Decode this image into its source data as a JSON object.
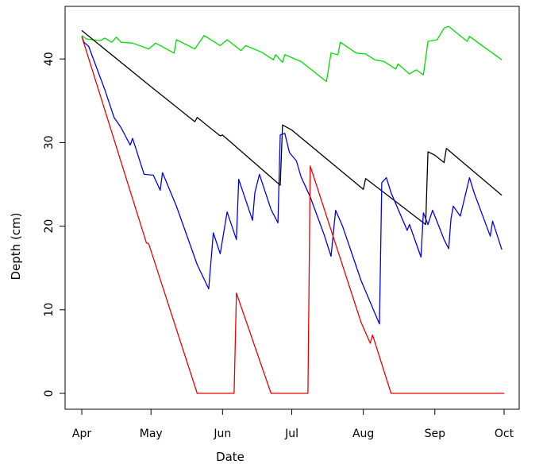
{
  "chart_data": {
    "type": "line",
    "title": "",
    "xlabel": "Date",
    "ylabel": "Depth (cm)",
    "x_ticks": [
      "Apr",
      "May",
      "Jun",
      "Jul",
      "Aug",
      "Sep",
      "Oct"
    ],
    "x_tick_dates": [
      "04-01",
      "05-01",
      "06-01",
      "07-01",
      "08-01",
      "09-01",
      "10-01"
    ],
    "y_ticks": [
      0,
      10,
      20,
      30,
      40
    ],
    "xlim": [
      "04-01",
      "10-01"
    ],
    "ylim": [
      0,
      43.9
    ],
    "grid": false,
    "series": [
      {
        "color": "#00dd00",
        "points": [
          [
            "04-01",
            42.8
          ],
          [
            "04-03",
            42.4
          ],
          [
            "04-09",
            42.2
          ],
          [
            "04-11",
            42.5
          ],
          [
            "04-14",
            42.0
          ],
          [
            "04-16",
            42.6
          ],
          [
            "04-18",
            42.0
          ],
          [
            "04-23",
            41.9
          ],
          [
            "04-30",
            41.2
          ],
          [
            "05-03",
            41.9
          ],
          [
            "05-11",
            40.7
          ],
          [
            "05-12",
            42.3
          ],
          [
            "05-20",
            41.2
          ],
          [
            "05-24",
            42.8
          ],
          [
            "05-31",
            41.6
          ],
          [
            "06-03",
            42.3
          ],
          [
            "06-09",
            41.0
          ],
          [
            "06-11",
            41.6
          ],
          [
            "06-18",
            40.8
          ],
          [
            "06-23",
            39.9
          ],
          [
            "06-24",
            40.5
          ],
          [
            "06-27",
            39.6
          ],
          [
            "06-28",
            40.5
          ],
          [
            "07-05",
            39.7
          ],
          [
            "07-16",
            37.3
          ],
          [
            "07-18",
            40.7
          ],
          [
            "07-21",
            40.5
          ],
          [
            "07-22",
            42.0
          ],
          [
            "07-29",
            40.7
          ],
          [
            "08-02",
            40.6
          ],
          [
            "08-06",
            39.9
          ],
          [
            "08-10",
            39.7
          ],
          [
            "08-15",
            38.8
          ],
          [
            "08-16",
            39.4
          ],
          [
            "08-21",
            38.2
          ],
          [
            "08-24",
            38.7
          ],
          [
            "08-27",
            38.1
          ],
          [
            "08-29",
            42.1
          ],
          [
            "09-02",
            42.3
          ],
          [
            "09-05",
            43.7
          ],
          [
            "09-07",
            43.9
          ],
          [
            "09-15",
            42.1
          ],
          [
            "09-16",
            42.7
          ],
          [
            "09-30",
            39.9
          ]
        ]
      },
      {
        "color": "#000000",
        "points": [
          [
            "04-01",
            43.4
          ],
          [
            "04-30",
            36.9
          ],
          [
            "05-20",
            32.5
          ],
          [
            "05-21",
            33.0
          ],
          [
            "05-31",
            30.8
          ],
          [
            "06-01",
            30.9
          ],
          [
            "06-26",
            24.9
          ],
          [
            "06-27",
            32.1
          ],
          [
            "07-01",
            31.5
          ],
          [
            "08-01",
            24.4
          ],
          [
            "08-02",
            25.7
          ],
          [
            "08-28",
            20.2
          ],
          [
            "08-29",
            28.9
          ],
          [
            "09-01",
            28.5
          ],
          [
            "09-05",
            27.6
          ],
          [
            "09-06",
            29.3
          ],
          [
            "09-30",
            23.7
          ]
        ]
      },
      {
        "color": "#0000ee",
        "points": [
          [
            "04-01",
            42.7
          ],
          [
            "04-02",
            42.0
          ],
          [
            "04-04",
            41.5
          ],
          [
            "04-11",
            36.3
          ],
          [
            "04-15",
            33.0
          ],
          [
            "04-18",
            31.8
          ],
          [
            "04-22",
            29.7
          ],
          [
            "04-23",
            30.5
          ],
          [
            "04-28",
            26.2
          ],
          [
            "05-02",
            26.1
          ],
          [
            "05-05",
            24.3
          ],
          [
            "05-06",
            26.4
          ],
          [
            "05-12",
            22.4
          ],
          [
            "05-21",
            15.4
          ],
          [
            "05-26",
            12.5
          ],
          [
            "05-28",
            19.2
          ],
          [
            "05-31",
            16.7
          ],
          [
            "06-03",
            21.7
          ],
          [
            "06-07",
            18.4
          ],
          [
            "06-08",
            25.6
          ],
          [
            "06-14",
            20.7
          ],
          [
            "06-15",
            24.0
          ],
          [
            "06-17",
            26.2
          ],
          [
            "06-22",
            22.0
          ],
          [
            "06-25",
            20.4
          ],
          [
            "06-26",
            30.9
          ],
          [
            "06-28",
            31.1
          ],
          [
            "06-30",
            28.8
          ],
          [
            "07-03",
            27.8
          ],
          [
            "07-05",
            25.9
          ],
          [
            "07-09",
            23.5
          ],
          [
            "07-15",
            19.0
          ],
          [
            "07-18",
            16.4
          ],
          [
            "07-20",
            21.9
          ],
          [
            "07-23",
            20.0
          ],
          [
            "07-31",
            13.5
          ],
          [
            "08-08",
            8.3
          ],
          [
            "08-09",
            25.2
          ],
          [
            "08-11",
            25.8
          ],
          [
            "08-13",
            24.0
          ],
          [
            "08-20",
            19.5
          ],
          [
            "08-21",
            20.2
          ],
          [
            "08-26",
            16.3
          ],
          [
            "08-27",
            21.6
          ],
          [
            "08-29",
            20.2
          ],
          [
            "08-31",
            21.9
          ],
          [
            "09-05",
            18.4
          ],
          [
            "09-07",
            17.3
          ],
          [
            "09-08",
            20.9
          ],
          [
            "09-09",
            22.4
          ],
          [
            "09-12",
            21.2
          ],
          [
            "09-16",
            25.8
          ],
          [
            "09-18",
            24.0
          ],
          [
            "09-25",
            18.8
          ],
          [
            "09-26",
            20.6
          ],
          [
            "09-30",
            17.2
          ]
        ]
      },
      {
        "color": "#ee0000",
        "points": [
          [
            "04-01",
            42.7
          ],
          [
            "04-29",
            18.0
          ],
          [
            "04-30",
            17.9
          ],
          [
            "05-21",
            0
          ],
          [
            "06-06",
            0
          ],
          [
            "06-07",
            12.0
          ],
          [
            "06-22",
            0
          ],
          [
            "07-08",
            0
          ],
          [
            "07-09",
            27.2
          ],
          [
            "07-31",
            8.5
          ],
          [
            "08-04",
            6.0
          ],
          [
            "08-05",
            7.0
          ],
          [
            "08-13",
            0
          ],
          [
            "10-01",
            0
          ]
        ]
      }
    ]
  }
}
